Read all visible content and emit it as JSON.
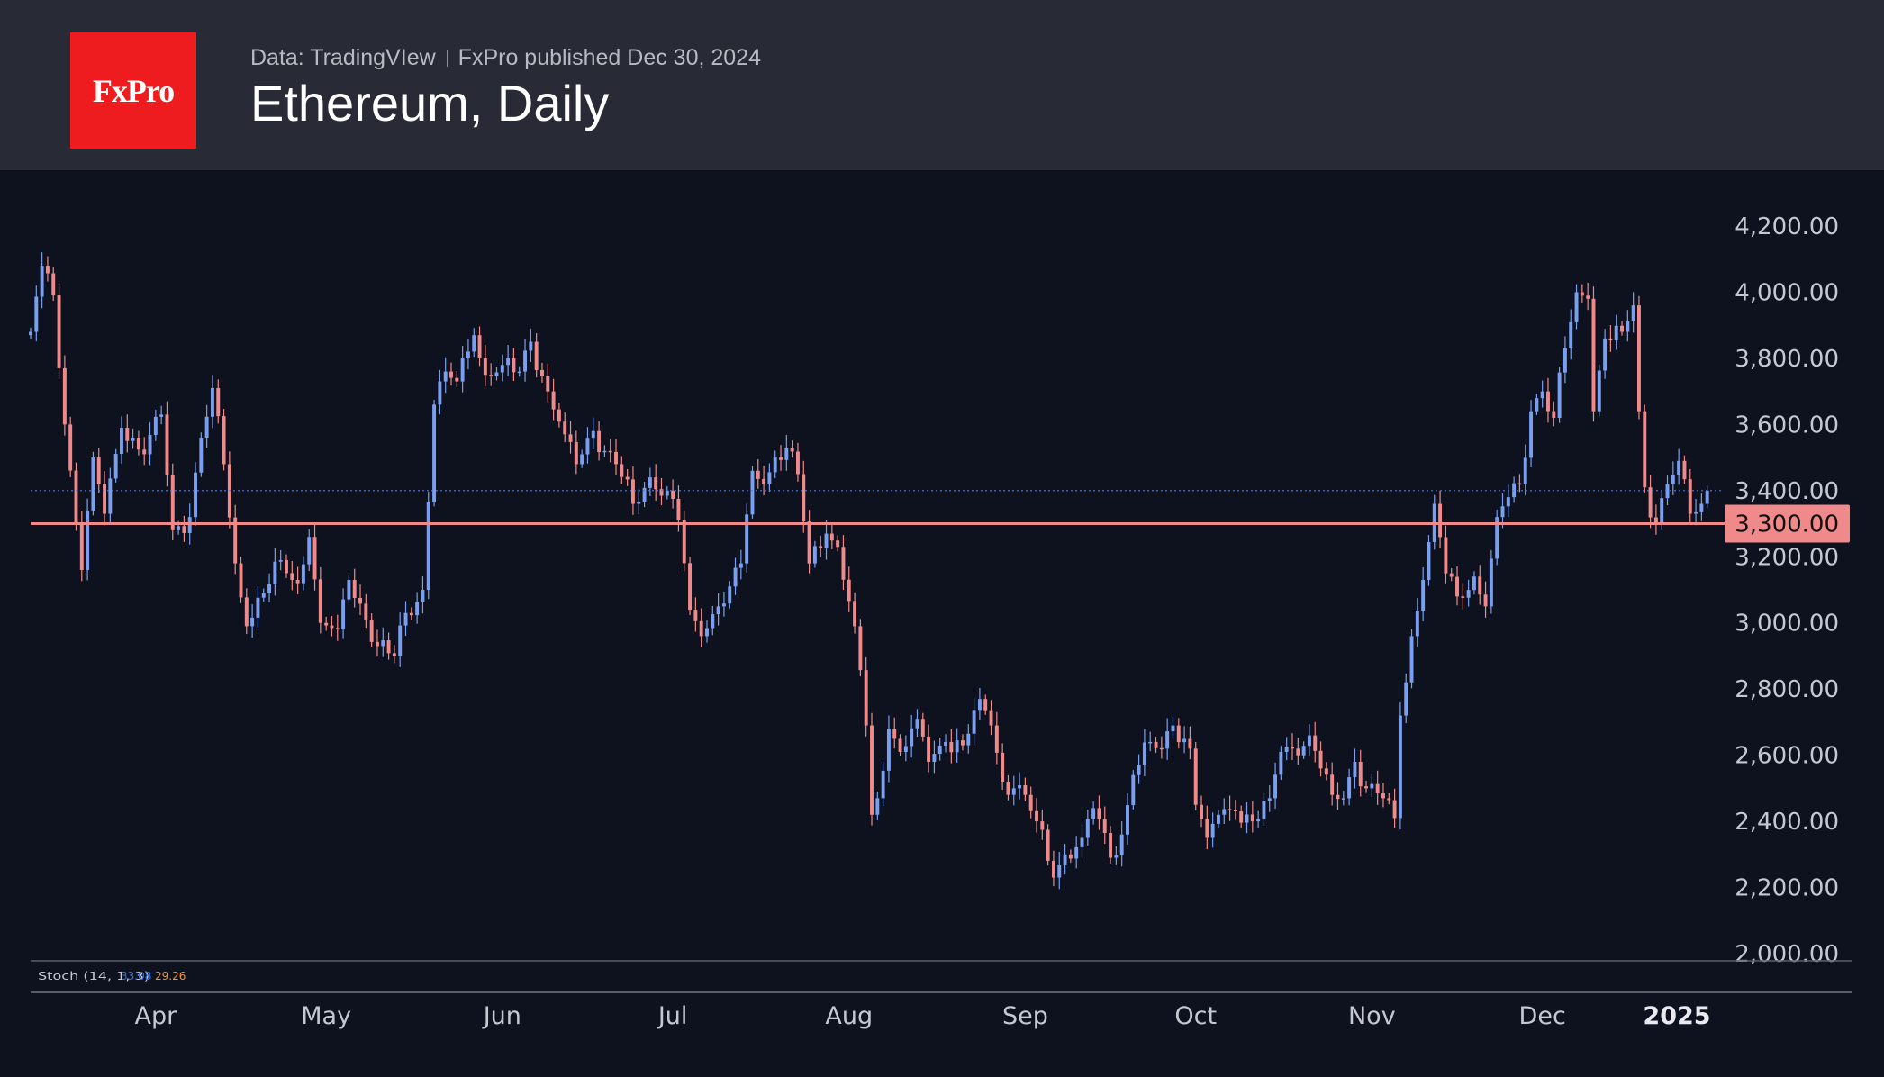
{
  "header": {
    "logo_text": "FxPro",
    "source": "Data: TradingVIew",
    "published": "FxPro published Dec 30, 2024",
    "title": "Ethereum, Daily"
  },
  "colors": {
    "up": "#7a9ff0",
    "down": "#f08a8a",
    "level_line": "#f08a8a",
    "last_price_line": "#5b7bd8",
    "background": "#0d121e",
    "header_bg": "#282a36",
    "logo_bg": "#ee1c1f"
  },
  "indicator": {
    "name": "Stoch (14, 1, 3)",
    "k": "33.08",
    "d": "29.26",
    "k_color": "#3d6ee8",
    "d_color": "#f5922b"
  },
  "chart_data": {
    "type": "candlestick",
    "title": "Ethereum, Daily",
    "y_ticks": [
      "2,000.00",
      "2,200.00",
      "2,400.00",
      "2,600.00",
      "2,800.00",
      "3,000.00",
      "3,200.00",
      "3,400.00",
      "3,600.00",
      "3,800.00",
      "4,000.00",
      "4,200.00"
    ],
    "y_tick_values": [
      2000,
      2200,
      2400,
      2600,
      2800,
      3000,
      3200,
      3400,
      3600,
      3800,
      4000,
      4200
    ],
    "ylim": [
      2000,
      4400
    ],
    "x_ticks": [
      "Apr",
      "May",
      "Jun",
      "Jul",
      "Aug",
      "Sep",
      "Oct",
      "Nov",
      "Dec",
      "2025"
    ],
    "x_tick_dates": [
      "2024-04-01",
      "2024-05-01",
      "2024-06-01",
      "2024-07-01",
      "2024-08-01",
      "2024-09-01",
      "2024-10-01",
      "2024-11-01",
      "2024-12-01",
      "2025-01-01"
    ],
    "xlim": [
      "2024-03-10",
      "2024-12-31"
    ],
    "level": {
      "value": 3300,
      "label": "3,300.00"
    },
    "last_close": 3400,
    "grid": false,
    "anchors": [
      [
        "2024-03-10",
        3880
      ],
      [
        "2024-03-12",
        4080
      ],
      [
        "2024-03-14",
        3990
      ],
      [
        "2024-03-16",
        3600
      ],
      [
        "2024-03-19",
        3160
      ],
      [
        "2024-03-21",
        3500
      ],
      [
        "2024-03-23",
        3330
      ],
      [
        "2024-03-26",
        3590
      ],
      [
        "2024-03-30",
        3510
      ],
      [
        "2024-04-02",
        3630
      ],
      [
        "2024-04-04",
        3280
      ],
      [
        "2024-04-07",
        3320
      ],
      [
        "2024-04-09",
        3560
      ],
      [
        "2024-04-11",
        3710
      ],
      [
        "2024-04-13",
        3480
      ],
      [
        "2024-04-15",
        3180
      ],
      [
        "2024-04-17",
        2990
      ],
      [
        "2024-04-20",
        3090
      ],
      [
        "2024-04-23",
        3190
      ],
      [
        "2024-04-26",
        3120
      ],
      [
        "2024-04-28",
        3260
      ],
      [
        "2024-04-30",
        3000
      ],
      [
        "2024-05-03",
        2980
      ],
      [
        "2024-05-05",
        3130
      ],
      [
        "2024-05-08",
        3010
      ],
      [
        "2024-05-10",
        2930
      ],
      [
        "2024-05-13",
        2900
      ],
      [
        "2024-05-15",
        3030
      ],
      [
        "2024-05-18",
        3100
      ],
      [
        "2024-05-20",
        3660
      ],
      [
        "2024-05-22",
        3760
      ],
      [
        "2024-05-24",
        3730
      ],
      [
        "2024-05-27",
        3870
      ],
      [
        "2024-05-29",
        3750
      ],
      [
        "2024-06-01",
        3780
      ],
      [
        "2024-06-04",
        3760
      ],
      [
        "2024-06-06",
        3850
      ],
      [
        "2024-06-09",
        3700
      ],
      [
        "2024-06-12",
        3570
      ],
      [
        "2024-06-14",
        3480
      ],
      [
        "2024-06-17",
        3580
      ],
      [
        "2024-06-19",
        3520
      ],
      [
        "2024-06-21",
        3480
      ],
      [
        "2024-06-24",
        3360
      ],
      [
        "2024-06-27",
        3440
      ],
      [
        "2024-06-30",
        3400
      ],
      [
        "2024-07-02",
        3310
      ],
      [
        "2024-07-04",
        3040
      ],
      [
        "2024-07-06",
        2960
      ],
      [
        "2024-07-09",
        3050
      ],
      [
        "2024-07-11",
        3110
      ],
      [
        "2024-07-13",
        3180
      ],
      [
        "2024-07-15",
        3460
      ],
      [
        "2024-07-17",
        3420
      ],
      [
        "2024-07-19",
        3500
      ],
      [
        "2024-07-21",
        3530
      ],
      [
        "2024-07-23",
        3450
      ],
      [
        "2024-07-25",
        3180
      ],
      [
        "2024-07-28",
        3270
      ],
      [
        "2024-07-30",
        3230
      ],
      [
        "2024-08-02",
        2990
      ],
      [
        "2024-08-04",
        2690
      ],
      [
        "2024-08-05",
        2420
      ],
      [
        "2024-08-06",
        2470
      ],
      [
        "2024-08-08",
        2680
      ],
      [
        "2024-08-10",
        2610
      ],
      [
        "2024-08-13",
        2710
      ],
      [
        "2024-08-15",
        2580
      ],
      [
        "2024-08-18",
        2640
      ],
      [
        "2024-08-21",
        2630
      ],
      [
        "2024-08-24",
        2770
      ],
      [
        "2024-08-26",
        2690
      ],
      [
        "2024-08-28",
        2520
      ],
      [
        "2024-08-30",
        2500
      ],
      [
        "2024-09-01",
        2480
      ],
      [
        "2024-09-03",
        2400
      ],
      [
        "2024-09-06",
        2230
      ],
      [
        "2024-09-08",
        2300
      ],
      [
        "2024-09-11",
        2350
      ],
      [
        "2024-09-13",
        2440
      ],
      [
        "2024-09-16",
        2290
      ],
      [
        "2024-09-18",
        2360
      ],
      [
        "2024-09-20",
        2540
      ],
      [
        "2024-09-23",
        2640
      ],
      [
        "2024-09-25",
        2620
      ],
      [
        "2024-09-27",
        2690
      ],
      [
        "2024-09-30",
        2620
      ],
      [
        "2024-10-01",
        2450
      ],
      [
        "2024-10-03",
        2350
      ],
      [
        "2024-10-05",
        2420
      ],
      [
        "2024-10-08",
        2430
      ],
      [
        "2024-10-11",
        2400
      ],
      [
        "2024-10-14",
        2470
      ],
      [
        "2024-10-16",
        2610
      ],
      [
        "2024-10-18",
        2620
      ],
      [
        "2024-10-21",
        2660
      ],
      [
        "2024-10-23",
        2560
      ],
      [
        "2024-10-25",
        2480
      ],
      [
        "2024-10-27",
        2470
      ],
      [
        "2024-10-29",
        2580
      ],
      [
        "2024-10-31",
        2500
      ],
      [
        "2024-11-03",
        2470
      ],
      [
        "2024-11-05",
        2410
      ],
      [
        "2024-11-06",
        2720
      ],
      [
        "2024-11-08",
        2960
      ],
      [
        "2024-11-10",
        3130
      ],
      [
        "2024-11-12",
        3360
      ],
      [
        "2024-11-14",
        3150
      ],
      [
        "2024-11-16",
        3080
      ],
      [
        "2024-11-19",
        3140
      ],
      [
        "2024-11-21",
        3050
      ],
      [
        "2024-11-23",
        3320
      ],
      [
        "2024-11-25",
        3380
      ],
      [
        "2024-11-27",
        3420
      ],
      [
        "2024-11-29",
        3640
      ],
      [
        "2024-12-01",
        3700
      ],
      [
        "2024-12-03",
        3620
      ],
      [
        "2024-12-05",
        3830
      ],
      [
        "2024-12-07",
        4000
      ],
      [
        "2024-12-09",
        3980
      ],
      [
        "2024-12-10",
        3640
      ],
      [
        "2024-12-12",
        3860
      ],
      [
        "2024-12-15",
        3880
      ],
      [
        "2024-12-17",
        3960
      ],
      [
        "2024-12-18",
        3640
      ],
      [
        "2024-12-19",
        3410
      ],
      [
        "2024-12-21",
        3300
      ],
      [
        "2024-12-23",
        3420
      ],
      [
        "2024-12-25",
        3490
      ],
      [
        "2024-12-27",
        3330
      ],
      [
        "2024-12-29",
        3360
      ],
      [
        "2024-12-30",
        3400
      ]
    ]
  }
}
